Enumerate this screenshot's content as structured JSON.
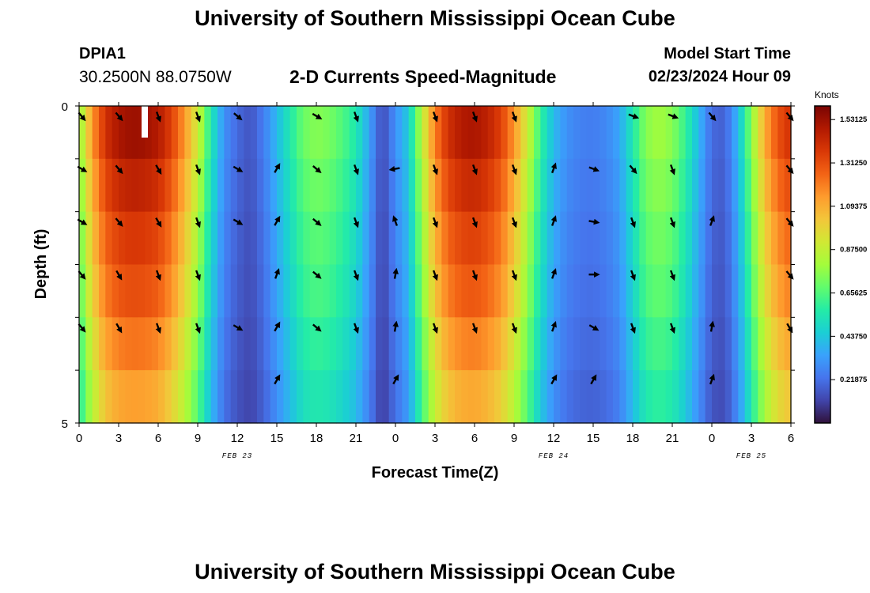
{
  "header": {
    "title": "University of Southern Mississippi Ocean Cube",
    "station": "DPIA1",
    "coords": "30.2500N  88.0750W",
    "model_label": "Model Start Time",
    "model_time": "02/23/2024 Hour 09"
  },
  "footer": {
    "title": "University of Southern Mississippi Ocean Cube"
  },
  "chart_data": {
    "type": "heatmap",
    "title": "2-D Currents Speed-Magnitude",
    "xlabel": "Forecast Time(Z)",
    "ylabel": "Depth (ft)",
    "x_tick_labels": [
      "0",
      "3",
      "6",
      "9",
      "12",
      "15",
      "18",
      "21",
      "0",
      "3",
      "6",
      "9",
      "12",
      "15",
      "18",
      "21",
      "0",
      "3",
      "6"
    ],
    "x_range_hours": [
      0,
      54
    ],
    "y_tick_labels": [
      "0",
      "5"
    ],
    "ylim": [
      0,
      5
    ],
    "date_labels": [
      {
        "text": "FEB 23",
        "hour": 12
      },
      {
        "text": "FEB 24",
        "hour": 36
      },
      {
        "text": "FEB 25",
        "hour": 51
      }
    ],
    "colorbar": {
      "units": "Knots",
      "tick_labels": [
        "1.53125",
        "1.31250",
        "1.09375",
        "0.87500",
        "0.65625",
        "0.43750",
        "0.21875"
      ],
      "ticks": [
        1.53125,
        1.3125,
        1.09375,
        0.875,
        0.65625,
        0.4375,
        0.21875
      ],
      "range": [
        0.0,
        1.6
      ],
      "colors": [
        "#30123b",
        "#4145ab",
        "#4675ed",
        "#39a2fc",
        "#1bcfd4",
        "#24eca6",
        "#61fc6c",
        "#a4fc3b",
        "#d1e834",
        "#f3c63a",
        "#fe9b2d",
        "#f36315",
        "#d93806",
        "#b11901",
        "#7a0402"
      ]
    },
    "speed_profile": {
      "hours": [
        0,
        1,
        2,
        3,
        4,
        5,
        6,
        7,
        8,
        9,
        10,
        11,
        12,
        13,
        14,
        15,
        16,
        17,
        18,
        19,
        20,
        21,
        22,
        23,
        24,
        25,
        26,
        27,
        28,
        29,
        30,
        31,
        32,
        33,
        34,
        35,
        36,
        37,
        38,
        39,
        40,
        41,
        42,
        43,
        44,
        45,
        46,
        47,
        48,
        49,
        50,
        51,
        52,
        53,
        54
      ],
      "knots": [
        0.75,
        1.15,
        1.4,
        1.5,
        1.53,
        1.52,
        1.48,
        1.35,
        1.15,
        0.9,
        0.55,
        0.3,
        0.2,
        0.15,
        0.25,
        0.4,
        0.55,
        0.7,
        0.75,
        0.72,
        0.65,
        0.55,
        0.35,
        0.12,
        0.3,
        0.45,
        0.85,
        1.2,
        1.4,
        1.48,
        1.5,
        1.45,
        1.35,
        1.15,
        0.9,
        0.6,
        0.4,
        0.3,
        0.26,
        0.25,
        0.28,
        0.35,
        0.55,
        0.75,
        0.8,
        0.75,
        0.6,
        0.4,
        0.2,
        0.18,
        0.4,
        0.75,
        1.1,
        1.3,
        1.4
      ]
    },
    "depth_factors": [
      1.0,
      0.95,
      0.9,
      0.86,
      0.8,
      0.74
    ],
    "arrows": {
      "hours": [
        0,
        3,
        6,
        9,
        12,
        15,
        18,
        21,
        24,
        27,
        30,
        33,
        36,
        39,
        42,
        45,
        48,
        51,
        54
      ],
      "rows": [
        [
          140,
          140,
          160,
          160,
          130,
          null,
          120,
          160,
          null,
          160,
          160,
          160,
          null,
          null,
          110,
          110,
          140,
          null,
          140
        ],
        [
          120,
          140,
          150,
          160,
          120,
          30,
          130,
          160,
          -100,
          160,
          160,
          160,
          20,
          110,
          140,
          160,
          null,
          null,
          140
        ],
        [
          120,
          140,
          150,
          160,
          120,
          30,
          130,
          160,
          -20,
          160,
          160,
          160,
          20,
          100,
          160,
          160,
          20,
          null,
          140
        ],
        [
          140,
          150,
          160,
          160,
          null,
          20,
          130,
          160,
          10,
          160,
          160,
          160,
          20,
          90,
          160,
          160,
          null,
          null,
          140
        ],
        [
          140,
          150,
          160,
          160,
          120,
          30,
          130,
          160,
          10,
          160,
          160,
          160,
          20,
          120,
          160,
          160,
          10,
          null,
          150
        ],
        [
          null,
          null,
          null,
          null,
          null,
          30,
          null,
          null,
          30,
          null,
          null,
          null,
          30,
          30,
          null,
          null,
          20,
          null,
          null
        ]
      ]
    }
  }
}
